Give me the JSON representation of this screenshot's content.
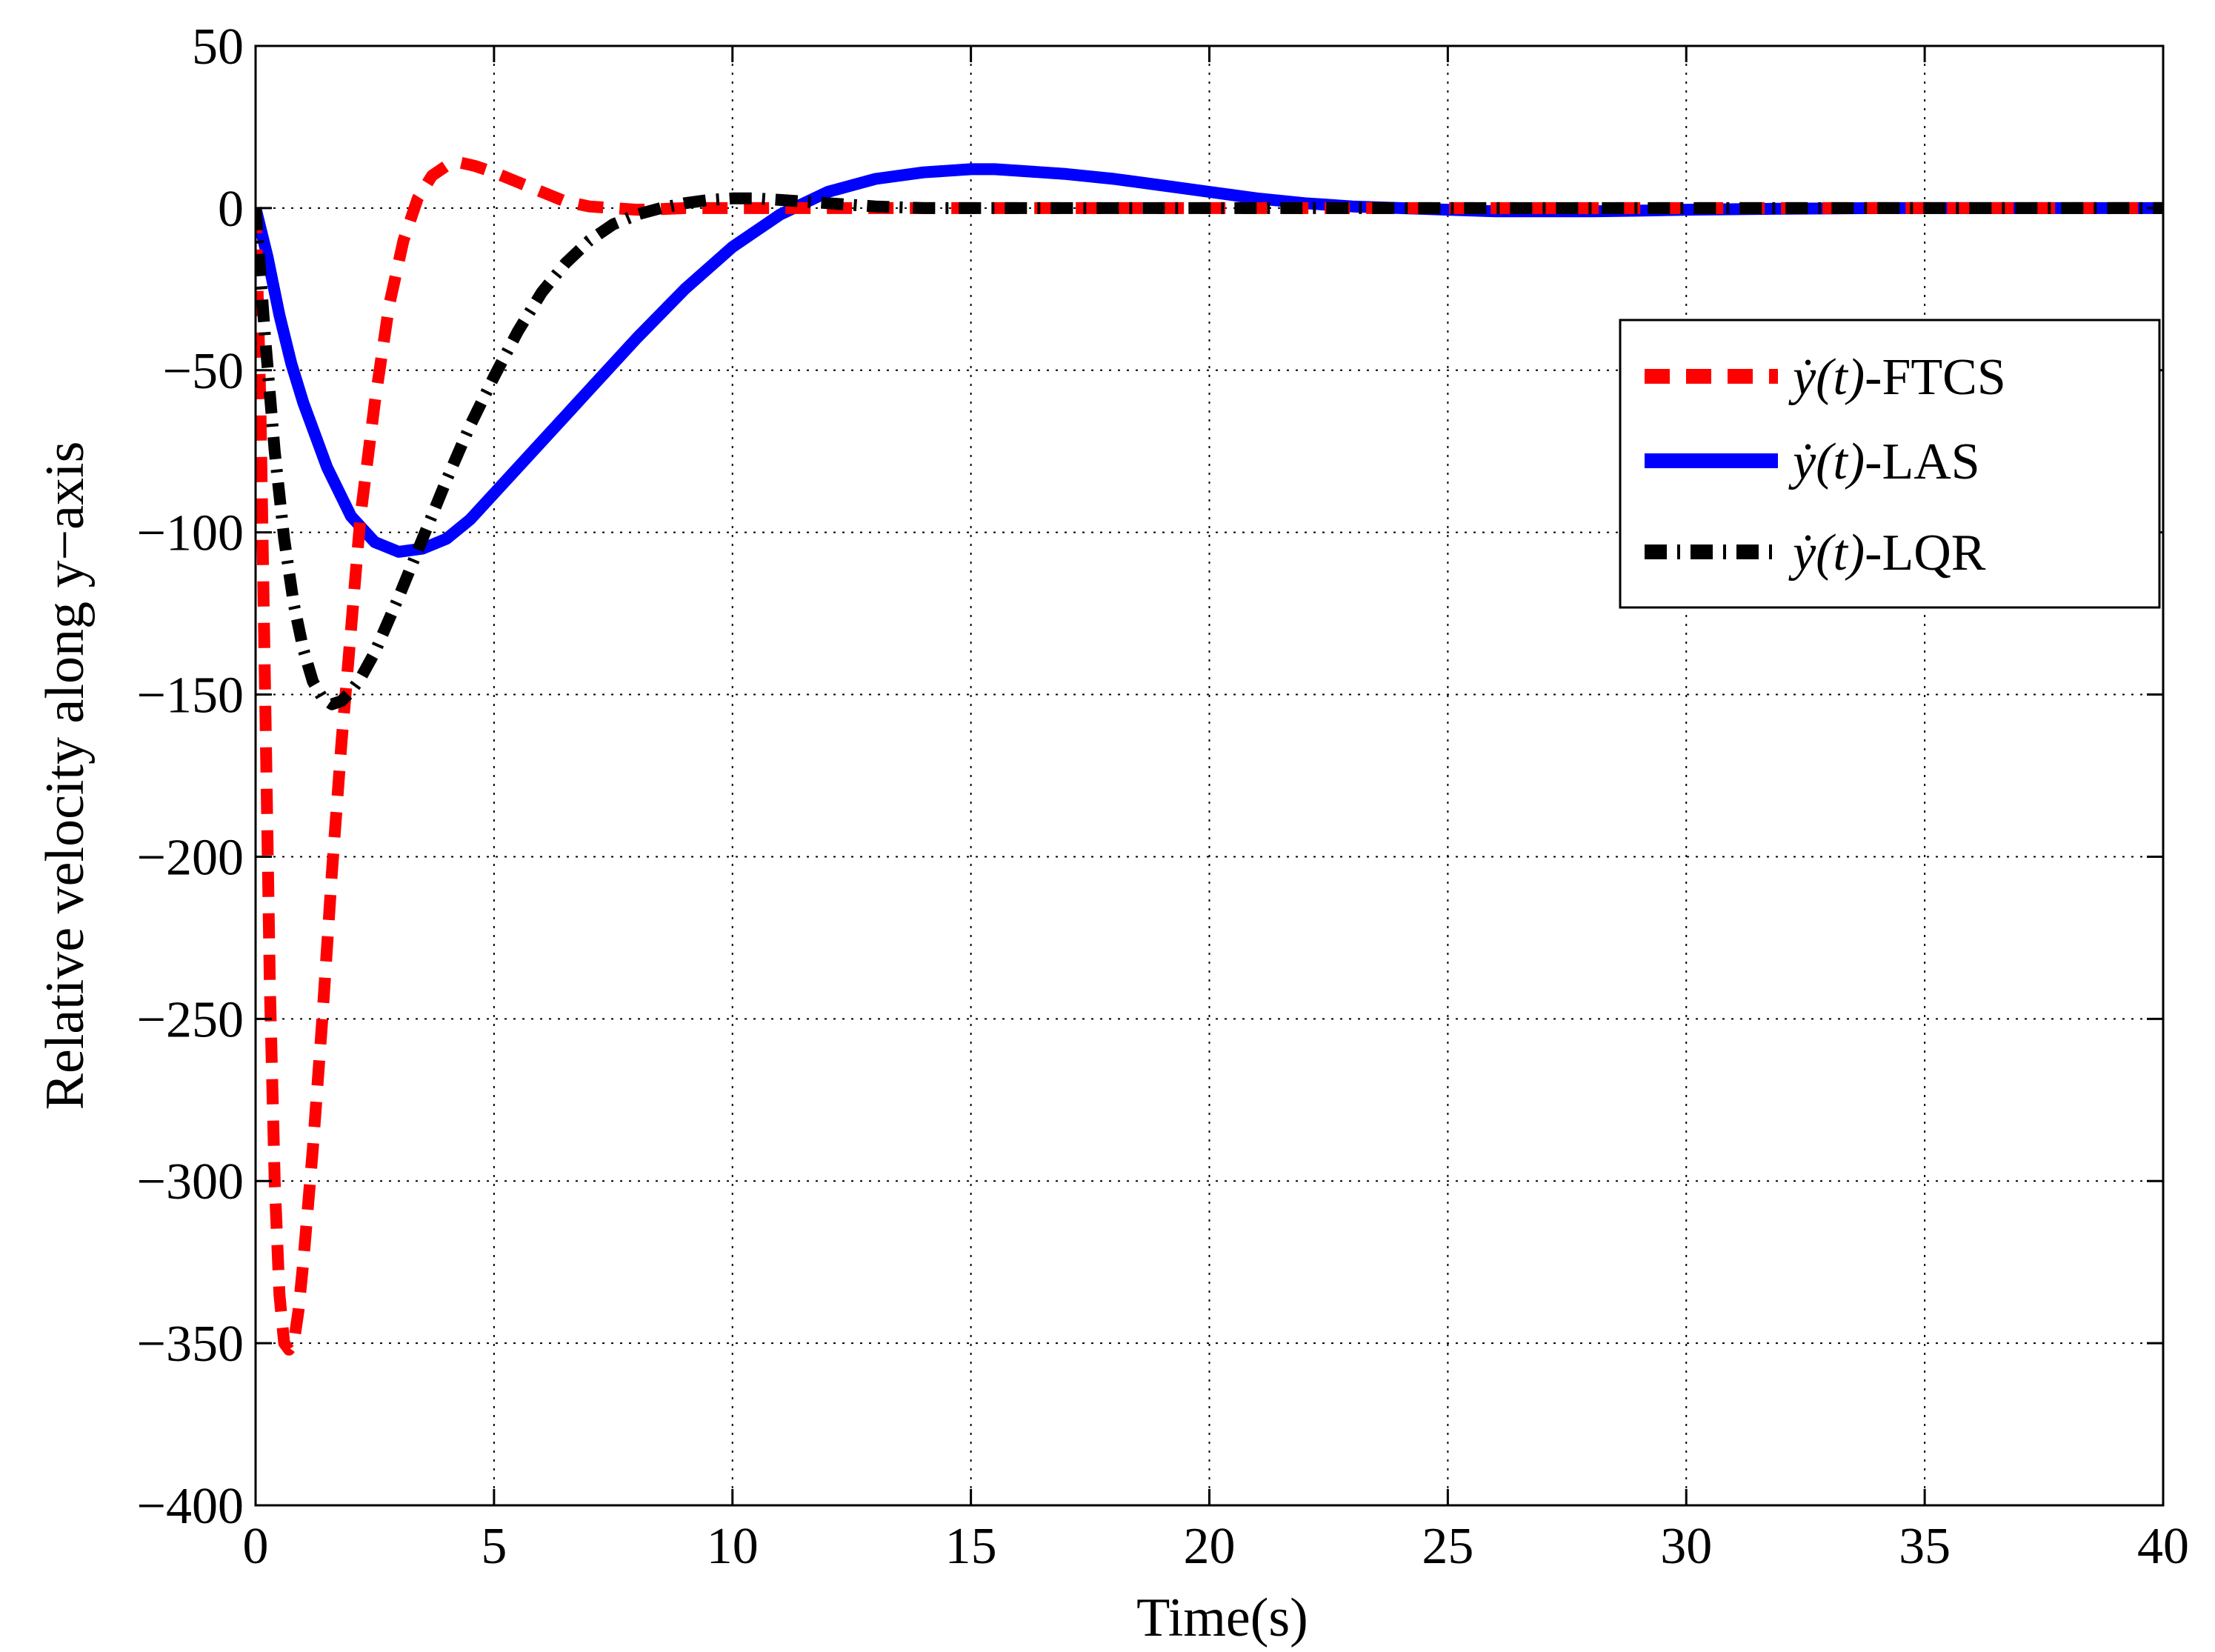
{
  "chart_data": {
    "type": "line",
    "title": "",
    "xlabel": "Time(s)",
    "ylabel": "Relative velocity along y−axis",
    "xlim": [
      0,
      40
    ],
    "ylim": [
      -400,
      50
    ],
    "grid": true,
    "legend_position": "top-right",
    "x_ticks": [
      0,
      5,
      10,
      15,
      20,
      25,
      30,
      35,
      40
    ],
    "x_tick_labels": [
      "0",
      "5",
      "10",
      "15",
      "20",
      "25",
      "30",
      "35",
      "40"
    ],
    "y_ticks": [
      50,
      0,
      -50,
      -100,
      -150,
      -200,
      -250,
      -300,
      -350,
      -400
    ],
    "y_tick_labels": [
      "50",
      "0",
      "−50",
      "−100",
      "−150",
      "−200",
      "−250",
      "−300",
      "−350",
      "−400"
    ],
    "series": [
      {
        "name": "FTCS",
        "legend_math": "ẏ(t)",
        "legend_suffix": "-FTCS",
        "color": "#ff0000",
        "style": "dashed",
        "x": [
          0,
          0.1,
          0.2,
          0.3,
          0.4,
          0.5,
          0.6,
          0.7,
          0.8,
          0.9,
          1.0,
          1.2,
          1.4,
          1.6,
          1.8,
          2.0,
          2.2,
          2.5,
          2.8,
          3.1,
          3.4,
          3.7,
          4.0,
          4.3,
          4.6,
          5.0,
          5.5,
          6.0,
          6.5,
          7.0,
          7.5,
          8.0,
          8.5,
          9.0,
          10,
          12,
          14,
          16,
          20,
          25,
          30,
          35,
          40
        ],
        "y": [
          0,
          -60,
          -150,
          -240,
          -300,
          -335,
          -350,
          -352,
          -350,
          -340,
          -325,
          -290,
          -250,
          -205,
          -165,
          -130,
          -95,
          -60,
          -30,
          -10,
          3,
          10,
          13,
          14,
          13,
          11,
          8,
          5,
          2,
          0.5,
          0,
          -0.5,
          -0.3,
          0,
          0,
          0,
          0,
          0,
          0,
          0,
          0,
          0,
          0
        ]
      },
      {
        "name": "LAS",
        "legend_math": "ẏ(t)",
        "legend_suffix": "-LAS",
        "color": "#0000ff",
        "style": "solid",
        "x": [
          0,
          0.25,
          0.5,
          0.75,
          1.0,
          1.5,
          2.0,
          2.5,
          3.0,
          3.5,
          4.0,
          4.5,
          5.0,
          6.0,
          7.0,
          8.0,
          9.0,
          10.0,
          11.0,
          12.0,
          13.0,
          14.0,
          15.0,
          15.5,
          16.0,
          17.0,
          18.0,
          19.0,
          20.0,
          21.0,
          22.0,
          23.0,
          24.0,
          25.0,
          26.0,
          27.0,
          28.0,
          29.0,
          30.0,
          32.0,
          34.0,
          36.0,
          38.0,
          40.0
        ],
        "y": [
          0,
          -15,
          -33,
          -48,
          -60,
          -80,
          -95,
          -103,
          -106,
          -105,
          -102,
          -96,
          -88,
          -72,
          -56,
          -40,
          -25,
          -12,
          -2,
          5,
          9,
          11,
          12,
          12,
          11.5,
          10.5,
          9,
          7,
          5,
          3,
          1.5,
          0.5,
          0,
          -0.5,
          -1,
          -1,
          -1,
          -0.8,
          -0.5,
          -0.2,
          0,
          0,
          0,
          0
        ]
      },
      {
        "name": "LQR",
        "legend_math": "ẏ(t)",
        "legend_suffix": "-LQR",
        "color": "#000000",
        "style": "dashdot",
        "x": [
          0,
          0.2,
          0.4,
          0.6,
          0.8,
          1.0,
          1.2,
          1.4,
          1.6,
          1.8,
          2.0,
          2.2,
          2.5,
          3.0,
          3.5,
          4.0,
          4.5,
          5.0,
          5.5,
          6.0,
          6.5,
          7.0,
          7.5,
          8.0,
          8.5,
          9.0,
          9.5,
          10.0,
          10.5,
          11.0,
          11.5,
          12.0,
          12.5,
          13.0,
          14.0,
          15.0,
          17.0,
          20.0,
          25.0,
          30.0,
          35.0,
          40.0
        ],
        "y": [
          0,
          -40,
          -75,
          -102,
          -122,
          -136,
          -146,
          -151,
          -153,
          -152,
          -149,
          -145,
          -137,
          -120,
          -102,
          -84,
          -67,
          -52,
          -38,
          -26,
          -17,
          -10,
          -5,
          -2,
          0,
          1.5,
          2.5,
          3,
          3,
          2.5,
          2,
          1.5,
          1,
          0.5,
          0,
          0,
          0,
          0,
          0,
          0,
          0,
          0
        ]
      }
    ]
  }
}
